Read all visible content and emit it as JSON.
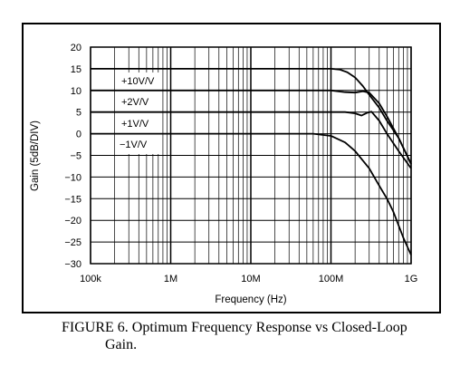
{
  "caption": {
    "line1": "FIGURE 6. Optimum Frequency Response vs Closed-Loop",
    "line2": "Gain."
  },
  "chart_data": {
    "type": "line",
    "title": "",
    "xlabel": "Frequency (Hz)",
    "ylabel": "Gain (5dB/DIV)",
    "xscale": "log",
    "xlim": [
      100000,
      1000000000
    ],
    "ylim": [
      -30,
      20
    ],
    "grid": true,
    "x_ticks": [
      {
        "value": 100000,
        "label": "100k"
      },
      {
        "value": 1000000,
        "label": "1M"
      },
      {
        "value": 10000000,
        "label": "10M"
      },
      {
        "value": 100000000,
        "label": "100M"
      },
      {
        "value": 1000000000,
        "label": "1G"
      }
    ],
    "y_ticks": [
      {
        "value": 20,
        "label": "20"
      },
      {
        "value": 15,
        "label": "15"
      },
      {
        "value": 10,
        "label": "10"
      },
      {
        "value": 5,
        "label": "5"
      },
      {
        "value": 0,
        "label": "0"
      },
      {
        "value": -5,
        "label": "−5"
      },
      {
        "value": -10,
        "label": "−10"
      },
      {
        "value": -15,
        "label": "−15"
      },
      {
        "value": -20,
        "label": "−20"
      },
      {
        "value": -25,
        "label": "−25"
      },
      {
        "value": -30,
        "label": "−30"
      }
    ],
    "series": [
      {
        "name": "+10V/V",
        "points": [
          [
            100000,
            15
          ],
          [
            10000000,
            15
          ],
          [
            100000000,
            15
          ],
          [
            130000000,
            14.8
          ],
          [
            160000000,
            14.2
          ],
          [
            200000000,
            13
          ],
          [
            250000000,
            11
          ],
          [
            300000000,
            9
          ],
          [
            400000000,
            6
          ],
          [
            500000000,
            3
          ],
          [
            700000000,
            -1
          ],
          [
            1000000000,
            -7
          ]
        ]
      },
      {
        "name": "+2V/V",
        "points": [
          [
            100000,
            10
          ],
          [
            10000000,
            10
          ],
          [
            100000000,
            10
          ],
          [
            150000000,
            9.6
          ],
          [
            200000000,
            9.5
          ],
          [
            250000000,
            9.8
          ],
          [
            300000000,
            9.5
          ],
          [
            400000000,
            7
          ],
          [
            500000000,
            4
          ],
          [
            700000000,
            -1
          ],
          [
            1000000000,
            -7
          ]
        ]
      },
      {
        "name": "+1V/V",
        "points": [
          [
            100000,
            5
          ],
          [
            10000000,
            5
          ],
          [
            100000000,
            5
          ],
          [
            150000000,
            5
          ],
          [
            200000000,
            4.7
          ],
          [
            240000000,
            4.2
          ],
          [
            280000000,
            4.8
          ],
          [
            320000000,
            5.1
          ],
          [
            400000000,
            3
          ],
          [
            500000000,
            0
          ],
          [
            700000000,
            -4
          ],
          [
            1000000000,
            -8
          ]
        ]
      },
      {
        "name": "−1V/V",
        "points": [
          [
            100000,
            0
          ],
          [
            10000000,
            0
          ],
          [
            60000000,
            0
          ],
          [
            100000000,
            -0.5
          ],
          [
            150000000,
            -2
          ],
          [
            200000000,
            -4
          ],
          [
            300000000,
            -8
          ],
          [
            400000000,
            -12
          ],
          [
            500000000,
            -15
          ],
          [
            600000000,
            -18
          ],
          [
            800000000,
            -24
          ],
          [
            1000000000,
            -28
          ]
        ]
      }
    ]
  }
}
